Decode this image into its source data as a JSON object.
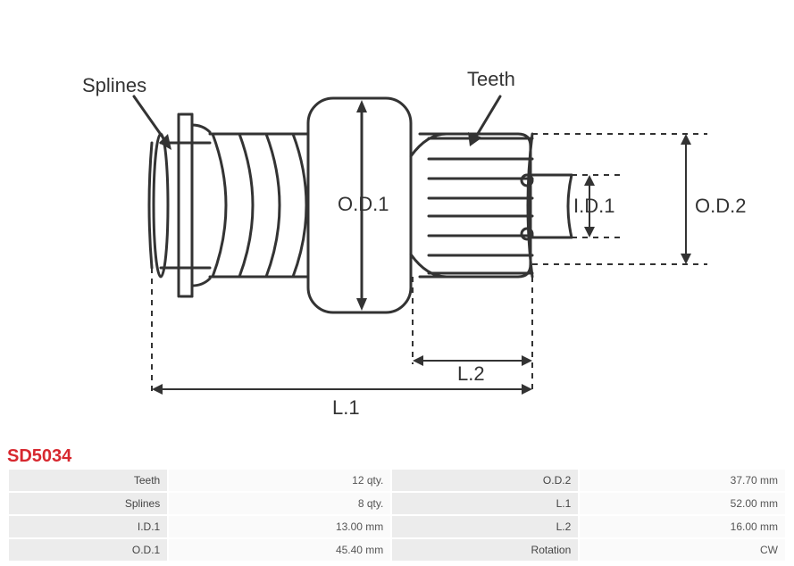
{
  "diagram": {
    "callouts": {
      "splines": "Splines",
      "teeth": "Teeth",
      "od1": "O.D.1",
      "id1": "I.D.1",
      "od2": "O.D.2",
      "l1": "L.1",
      "l2": "L.2"
    },
    "stroke_color": "#333333",
    "stroke_width": 3,
    "dash_pattern": "6 6",
    "label_fontsize": 22,
    "label_color": "#333333",
    "background": "#ffffff"
  },
  "part_number": "SD5034",
  "part_number_color": "#d7282f",
  "table": {
    "rows": [
      {
        "k1": "Teeth",
        "v1": "12 qty.",
        "k2": "O.D.2",
        "v2": "37.70 mm"
      },
      {
        "k1": "Splines",
        "v1": "8 qty.",
        "k2": "L.1",
        "v2": "52.00 mm"
      },
      {
        "k1": "I.D.1",
        "v1": "13.00 mm",
        "k2": "L.2",
        "v2": "16.00 mm"
      },
      {
        "k1": "O.D.1",
        "v1": "45.40 mm",
        "k2": "Rotation",
        "v2": "CW"
      }
    ],
    "label_bg": "#ececec",
    "value_bg": "#fafafa",
    "font_size": 12,
    "text_color": "#555555"
  }
}
